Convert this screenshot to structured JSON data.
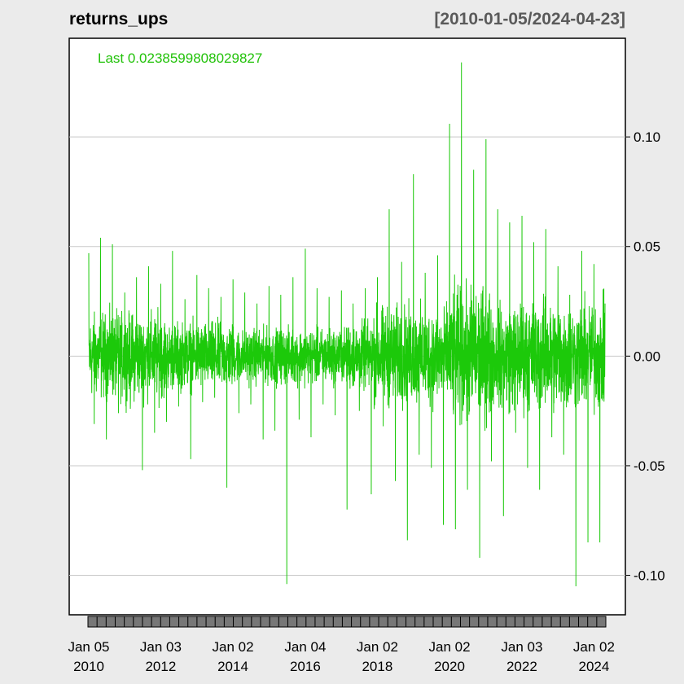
{
  "header": {
    "title": "returns_ups",
    "range": "[2010-01-05/2024-04-23]"
  },
  "legend": {
    "last_label": "Last 0.0238599808029827"
  },
  "colors": {
    "series": "#1cc90a",
    "last_text": "#22c20a",
    "background": "#ebebeb",
    "panel": "#ffffff",
    "grid": "#c8c8c8",
    "axis_ticks_band": "#777777"
  },
  "chart_data": {
    "type": "line",
    "title": "returns_ups",
    "subtitle": "[2010-01-05/2024-04-23]",
    "x_range": [
      "2010-01-05",
      "2024-04-23"
    ],
    "ylim": [
      -0.118,
      0.145
    ],
    "y_ticks": [
      0.1,
      0.05,
      0.0,
      -0.05,
      -0.1
    ],
    "y_tick_labels": [
      "0.10",
      "0.05",
      "0.00",
      "-0.05",
      "-0.10"
    ],
    "x_ticks": [
      {
        "date": "2010-01-05",
        "line1": "Jan 05",
        "line2": "2010"
      },
      {
        "date": "2012-01-03",
        "line1": "Jan 03",
        "line2": "2012"
      },
      {
        "date": "2014-01-02",
        "line1": "Jan 02",
        "line2": "2014"
      },
      {
        "date": "2016-01-04",
        "line1": "Jan 04",
        "line2": "2016"
      },
      {
        "date": "2018-01-02",
        "line1": "Jan 02",
        "line2": "2018"
      },
      {
        "date": "2020-01-02",
        "line1": "Jan 02",
        "line2": "2020"
      },
      {
        "date": "2022-01-03",
        "line1": "Jan 03",
        "line2": "2022"
      },
      {
        "date": "2024-01-02",
        "line1": "Jan 02",
        "line2": "2024"
      }
    ],
    "grid": true,
    "series": [
      {
        "x": [
          "2010-01-05",
          "2010-03-01",
          "2010-05-03",
          "2010-07-01",
          "2010-09-01",
          "2010-11-01",
          "2011-01-03",
          "2011-03-01",
          "2011-05-02",
          "2011-07-01",
          "2011-09-01",
          "2011-11-01",
          "2012-01-03",
          "2012-03-01",
          "2012-05-01",
          "2012-07-02",
          "2012-09-04",
          "2012-11-01",
          "2013-01-02",
          "2013-03-01",
          "2013-05-01",
          "2013-07-01",
          "2013-09-03",
          "2013-11-01",
          "2014-01-02",
          "2014-03-03",
          "2014-05-01",
          "2014-07-01",
          "2014-09-02",
          "2014-11-03",
          "2015-01-02",
          "2015-03-02",
          "2015-05-01",
          "2015-07-01",
          "2015-09-01",
          "2015-11-02",
          "2016-01-04",
          "2016-03-01",
          "2016-05-02",
          "2016-07-01",
          "2016-09-01",
          "2016-11-01",
          "2017-01-03",
          "2017-03-01",
          "2017-05-01",
          "2017-07-03",
          "2017-09-01",
          "2017-11-01",
          "2018-01-02",
          "2018-03-01",
          "2018-05-01",
          "2018-07-02",
          "2018-09-04",
          "2018-11-01",
          "2019-01-02",
          "2019-03-01",
          "2019-05-01",
          "2019-07-01",
          "2019-09-03",
          "2019-11-01",
          "2020-01-02",
          "2020-03-02",
          "2020-05-01",
          "2020-07-01",
          "2020-09-01",
          "2020-11-02",
          "2021-01-04",
          "2021-03-01",
          "2021-05-03",
          "2021-07-01",
          "2021-09-01",
          "2021-11-01",
          "2022-01-03",
          "2022-03-01",
          "2022-05-02",
          "2022-07-01",
          "2022-09-01",
          "2022-11-01",
          "2023-01-03",
          "2023-03-01",
          "2023-05-01",
          "2023-07-03",
          "2023-09-01",
          "2023-11-01",
          "2024-01-02",
          "2024-03-01",
          "2024-04-23"
        ],
        "y": [
          0.047,
          -0.031,
          0.054,
          -0.038,
          0.051,
          -0.026,
          0.029,
          -0.024,
          0.036,
          -0.052,
          0.041,
          -0.035,
          0.033,
          -0.03,
          0.048,
          -0.023,
          0.026,
          -0.047,
          0.037,
          -0.021,
          0.031,
          -0.019,
          0.027,
          -0.06,
          0.035,
          -0.026,
          0.029,
          -0.022,
          0.024,
          -0.038,
          0.032,
          -0.034,
          0.028,
          -0.104,
          0.036,
          -0.029,
          0.049,
          -0.037,
          0.031,
          -0.022,
          0.027,
          -0.027,
          0.03,
          -0.07,
          0.024,
          -0.025,
          0.031,
          -0.063,
          0.036,
          -0.032,
          0.067,
          -0.057,
          0.043,
          -0.084,
          0.083,
          -0.045,
          0.038,
          -0.051,
          0.046,
          -0.077,
          0.106,
          -0.079,
          0.134,
          -0.061,
          0.085,
          -0.092,
          0.099,
          -0.048,
          0.067,
          -0.073,
          0.061,
          -0.035,
          0.064,
          -0.051,
          0.052,
          -0.061,
          0.058,
          -0.037,
          0.041,
          -0.045,
          0.028,
          -0.105,
          0.048,
          -0.085,
          0.042,
          -0.085,
          0.024
        ]
      }
    ]
  }
}
